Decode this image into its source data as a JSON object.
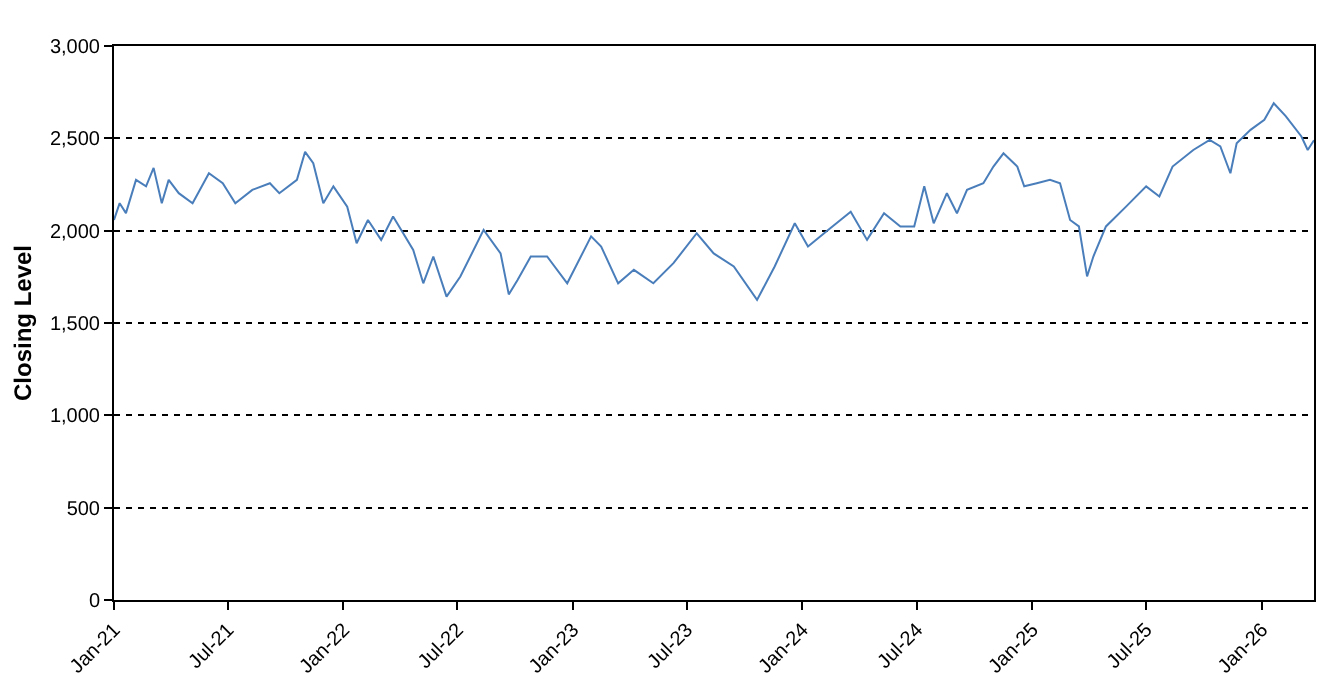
{
  "chart_data": {
    "type": "line",
    "ylabel": "Closing Level",
    "grid": "y",
    "xlim": [
      "2021-01-01",
      "2026-03-25"
    ],
    "ylim": [
      0,
      3000
    ],
    "yticks": [
      0,
      500,
      {
        "value": 1000,
        "label": "1,000"
      },
      {
        "value": 1500,
        "label": "1,500"
      },
      {
        "value": 2000,
        "label": "2,000"
      },
      {
        "value": 2500,
        "label": "2,500"
      },
      {
        "value": 3000,
        "label": "3,000"
      }
    ],
    "xticks": [
      {
        "value": "2021-01-01",
        "label": "Jan-21"
      },
      {
        "value": "2021-07-01",
        "label": "Jul-21"
      },
      {
        "value": "2022-01-01",
        "label": "Jan-22"
      },
      {
        "value": "2022-07-01",
        "label": "Jul-22"
      },
      {
        "value": "2023-01-01",
        "label": "Jan-23"
      },
      {
        "value": "2023-07-01",
        "label": "Jul-23"
      },
      {
        "value": "2024-01-01",
        "label": "Jan-24"
      },
      {
        "value": "2024-07-01",
        "label": "Jul-24"
      },
      {
        "value": "2025-01-01",
        "label": "Jan-25"
      },
      {
        "value": "2025-07-01",
        "label": "Jul-25"
      },
      {
        "value": "2026-01-01",
        "label": "Jan-26"
      }
    ],
    "x": [
      "2021-01-01",
      "2021-01-10",
      "2021-01-20",
      "2021-02-05",
      "2021-02-21",
      "2021-03-05",
      "2021-03-18",
      "2021-03-29",
      "2021-04-14",
      "2021-05-06",
      "2021-06-01",
      "2021-06-23",
      "2021-07-13",
      "2021-08-09",
      "2021-09-06",
      "2021-09-21",
      "2021-10-19",
      "2021-11-01",
      "2021-11-14",
      "2021-11-30",
      "2021-12-16",
      "2022-01-07",
      "2022-01-22",
      "2022-02-09",
      "2022-03-02",
      "2022-03-21",
      "2022-04-22",
      "2022-05-08",
      "2022-05-24",
      "2022-06-14",
      "2022-07-06",
      "2022-08-12",
      "2022-09-08",
      "2022-09-21",
      "2022-10-05",
      "2022-10-26",
      "2022-11-21",
      "2022-12-23",
      "2023-01-30",
      "2023-02-15",
      "2023-03-14",
      "2023-04-08",
      "2023-05-09",
      "2023-06-10",
      "2023-07-17",
      "2023-08-13",
      "2023-09-14",
      "2023-10-21",
      "2023-11-18",
      "2023-12-20",
      "2024-01-10",
      "2024-02-11",
      "2024-03-18",
      "2024-04-13",
      "2024-05-10",
      "2024-06-05",
      "2024-06-27",
      "2024-07-13",
      "2024-07-28",
      "2024-08-18",
      "2024-09-03",
      "2024-09-19",
      "2024-10-15",
      "2024-10-31",
      "2024-11-16",
      "2024-12-08",
      "2024-12-19",
      "2025-01-08",
      "2025-01-29",
      "2025-02-14",
      "2025-03-02",
      "2025-03-16",
      "2025-03-29",
      "2025-04-08",
      "2025-04-28",
      "2025-05-30",
      "2025-07-01",
      "2025-07-22",
      "2025-08-12",
      "2025-09-14",
      "2025-10-10",
      "2025-10-27",
      "2025-11-12",
      "2025-11-22",
      "2025-12-14",
      "2026-01-05",
      "2026-01-20",
      "2026-02-08",
      "2026-03-05",
      "2026-03-15",
      "2026-03-25"
    ],
    "series": [
      {
        "color": "#4a7ebb",
        "values": [
          2058,
          2149,
          2095,
          2275,
          2240,
          2340,
          2148,
          2275,
          2203,
          2148,
          2311,
          2257,
          2148,
          2221,
          2257,
          2203,
          2275,
          2427,
          2365,
          2148,
          2240,
          2130,
          1932,
          2058,
          1950,
          2077,
          1896,
          1715,
          1860,
          1643,
          1752,
          2004,
          1877,
          1655,
          1733,
          1860,
          1860,
          1715,
          1969,
          1914,
          1715,
          1788,
          1715,
          1824,
          1986,
          1877,
          1806,
          1625,
          1806,
          2040,
          1914,
          2004,
          2102,
          1950,
          2094,
          2023,
          2023,
          2240,
          2040,
          2203,
          2094,
          2221,
          2257,
          2347,
          2419,
          2347,
          2240,
          2257,
          2275,
          2257,
          2058,
          2023,
          1752,
          1860,
          2023,
          2130,
          2240,
          2185,
          2347,
          2437,
          2492,
          2456,
          2311,
          2473,
          2546,
          2600,
          2690,
          2620,
          2510,
          2437,
          2490
        ]
      }
    ]
  }
}
